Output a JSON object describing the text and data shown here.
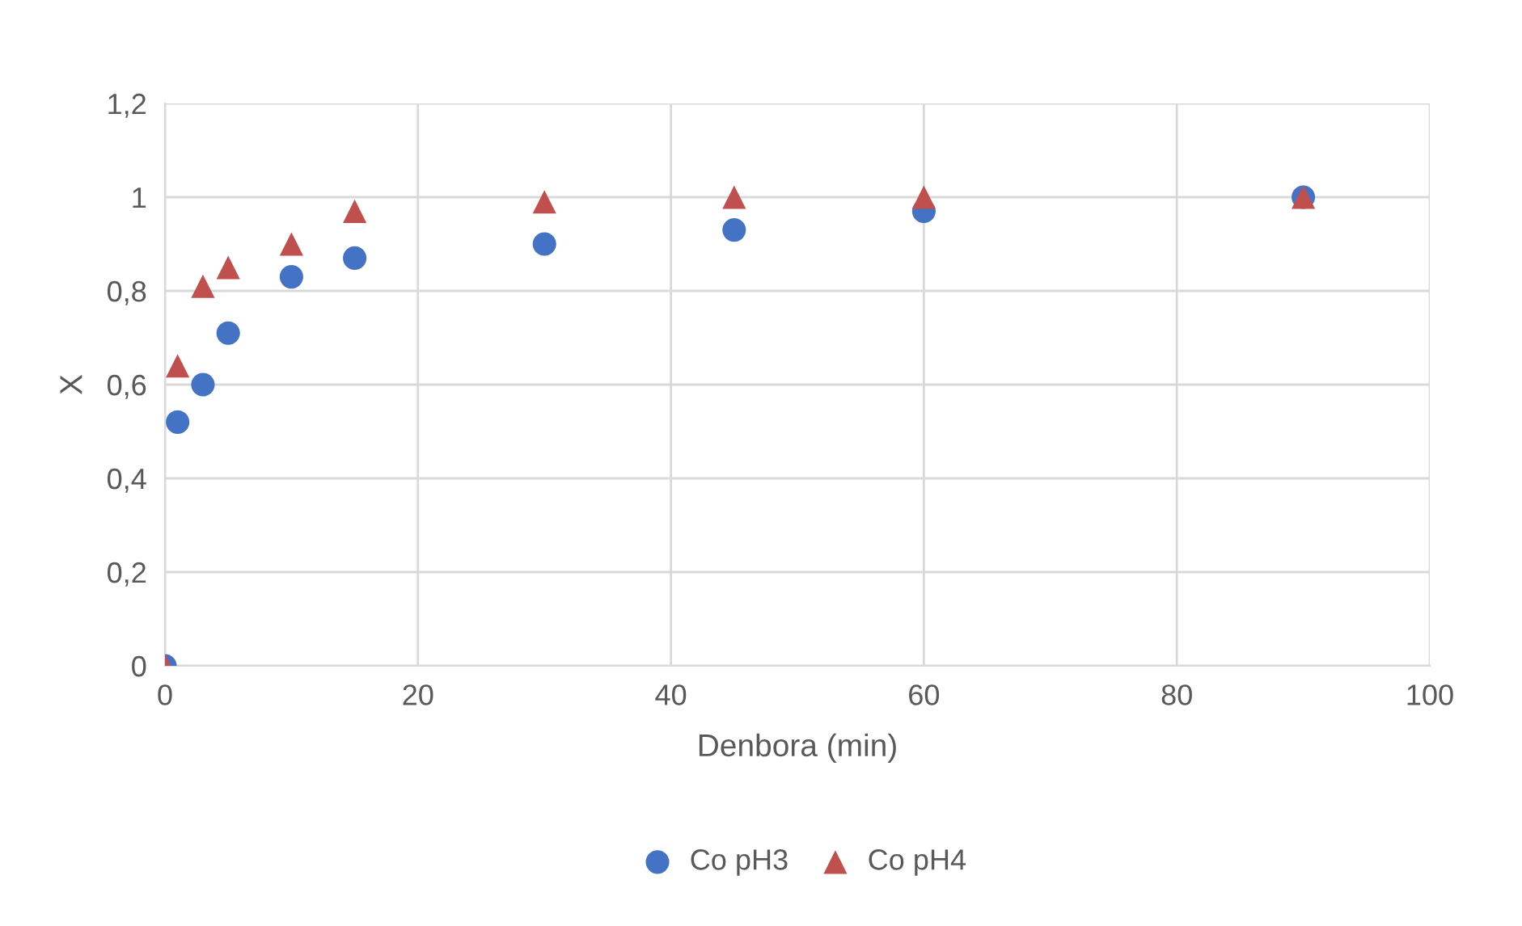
{
  "chart_data": {
    "type": "scatter",
    "xlabel": "Denbora (min)",
    "ylabel": "X",
    "xlim": [
      0,
      100
    ],
    "xticks": [
      0,
      20,
      40,
      60,
      80,
      100
    ],
    "ylim": [
      0,
      1.2
    ],
    "yticks": [
      0,
      {
        "value": 0.2,
        "label": "0,2"
      },
      {
        "value": 0.4,
        "label": "0,4"
      },
      {
        "value": 0.6,
        "label": "0,6"
      },
      {
        "value": 0.8,
        "label": "0,8"
      },
      1,
      {
        "value": 1.2,
        "label": "1,2"
      }
    ],
    "grid": true,
    "legend": "bottom",
    "series": [
      {
        "name": "Co pH3",
        "color": "#4472c4",
        "marker": "circle",
        "x": [
          0,
          1,
          3,
          5,
          10,
          15,
          30,
          45,
          60,
          90
        ],
        "values": [
          0,
          0.52,
          0.6,
          0.71,
          0.83,
          0.87,
          0.9,
          0.93,
          0.97,
          1.0
        ]
      },
      {
        "name": "Co pH4",
        "color": "#c0504d",
        "marker": "triangle",
        "x": [
          0,
          1,
          3,
          5,
          10,
          15,
          30,
          45,
          60,
          90
        ],
        "values": [
          0,
          0.64,
          0.81,
          0.85,
          0.9,
          0.97,
          0.99,
          1.0,
          1.0,
          1.0
        ]
      }
    ]
  }
}
